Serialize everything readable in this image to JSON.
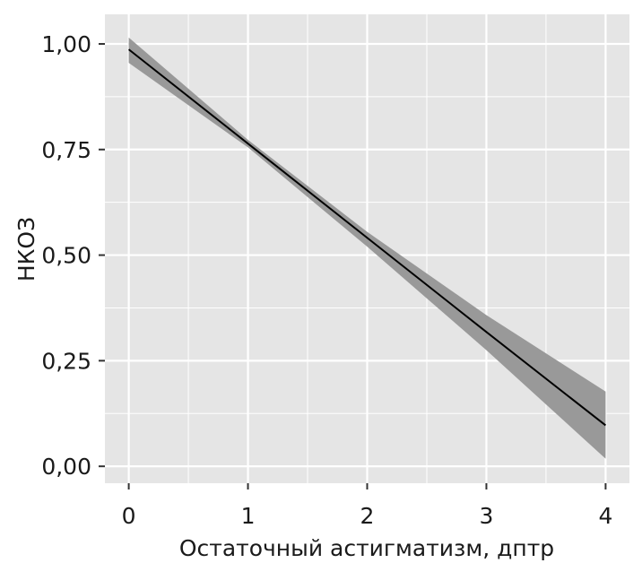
{
  "chart_data": {
    "type": "line",
    "title": "",
    "xlabel": "Остаточный астигматизм, дптр",
    "ylabel": "НКОЗ",
    "xlim": [
      -0.2,
      4.2
    ],
    "ylim": [
      -0.04,
      1.07
    ],
    "grid": true,
    "x_ticks": [
      0,
      1,
      2,
      3,
      4
    ],
    "x_tick_labels": [
      "0",
      "1",
      "2",
      "3",
      "4"
    ],
    "y_ticks": [
      0,
      0.25,
      0.5,
      0.75,
      1.0
    ],
    "y_tick_labels": [
      "0,00",
      "0,25",
      "0,50",
      "0,75",
      "1,00"
    ],
    "series": [
      {
        "x": [
          0,
          1,
          2,
          3,
          4
        ],
        "y": [
          0.987,
          0.764,
          0.541,
          0.318,
          0.097
        ],
        "ci_lower": [
          0.955,
          0.755,
          0.52,
          0.275,
          0.018
        ],
        "ci_upper": [
          1.015,
          0.773,
          0.555,
          0.358,
          0.177
        ],
        "color": "#000000",
        "band_color": "#999999"
      }
    ],
    "colors": {
      "panel_background": "#e5e5e5",
      "grid_major": "#ffffff",
      "line": "#000000",
      "confidence_band": "#999999"
    }
  }
}
